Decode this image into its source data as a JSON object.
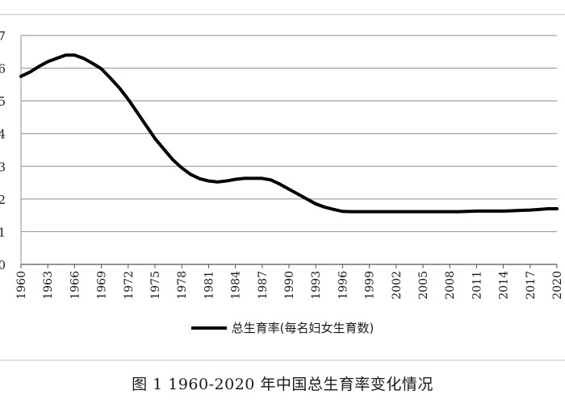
{
  "caption": "图 1 1960-2020 年中国总生育率变化情况",
  "chart_data": {
    "type": "line",
    "title": "",
    "xlabel": "",
    "ylabel": "",
    "ylim": [
      0,
      7
    ],
    "yticks": [
      0,
      1,
      2,
      3,
      4,
      5,
      6,
      7
    ],
    "ytick_labels": [
      "0",
      "1",
      "2",
      "3",
      "4",
      "5",
      "6",
      "7"
    ],
    "grid": true,
    "legend_position": "bottom",
    "x_tick_labels": [
      "1960",
      "1963",
      "1966",
      "1969",
      "1972",
      "1975",
      "1978",
      "1981",
      "1984",
      "1987",
      "1990",
      "1993",
      "1996",
      "1999",
      "2002",
      "2005",
      "2008",
      "2011",
      "2014",
      "2017",
      "2020"
    ],
    "x": [
      1960,
      1961,
      1962,
      1963,
      1964,
      1965,
      1966,
      1967,
      1968,
      1969,
      1970,
      1971,
      1972,
      1973,
      1974,
      1975,
      1976,
      1977,
      1978,
      1979,
      1980,
      1981,
      1982,
      1983,
      1984,
      1985,
      1986,
      1987,
      1988,
      1989,
      1990,
      1991,
      1992,
      1993,
      1994,
      1995,
      1996,
      1997,
      1998,
      1999,
      2000,
      2001,
      2002,
      2003,
      2004,
      2005,
      2006,
      2007,
      2008,
      2009,
      2010,
      2011,
      2012,
      2013,
      2014,
      2015,
      2016,
      2017,
      2018,
      2019,
      2020
    ],
    "series": [
      {
        "name": "总生育率(每名妇女生育数)",
        "color": "#000000",
        "values": [
          5.75,
          5.88,
          6.05,
          6.2,
          6.3,
          6.4,
          6.4,
          6.3,
          6.15,
          5.98,
          5.7,
          5.4,
          5.05,
          4.65,
          4.25,
          3.85,
          3.52,
          3.2,
          2.95,
          2.75,
          2.62,
          2.55,
          2.52,
          2.55,
          2.6,
          2.63,
          2.63,
          2.63,
          2.58,
          2.45,
          2.3,
          2.15,
          2.0,
          1.85,
          1.75,
          1.68,
          1.62,
          1.61,
          1.61,
          1.61,
          1.61,
          1.61,
          1.61,
          1.61,
          1.61,
          1.61,
          1.61,
          1.61,
          1.61,
          1.61,
          1.62,
          1.63,
          1.63,
          1.63,
          1.63,
          1.64,
          1.65,
          1.66,
          1.68,
          1.7,
          1.7
        ]
      }
    ]
  }
}
